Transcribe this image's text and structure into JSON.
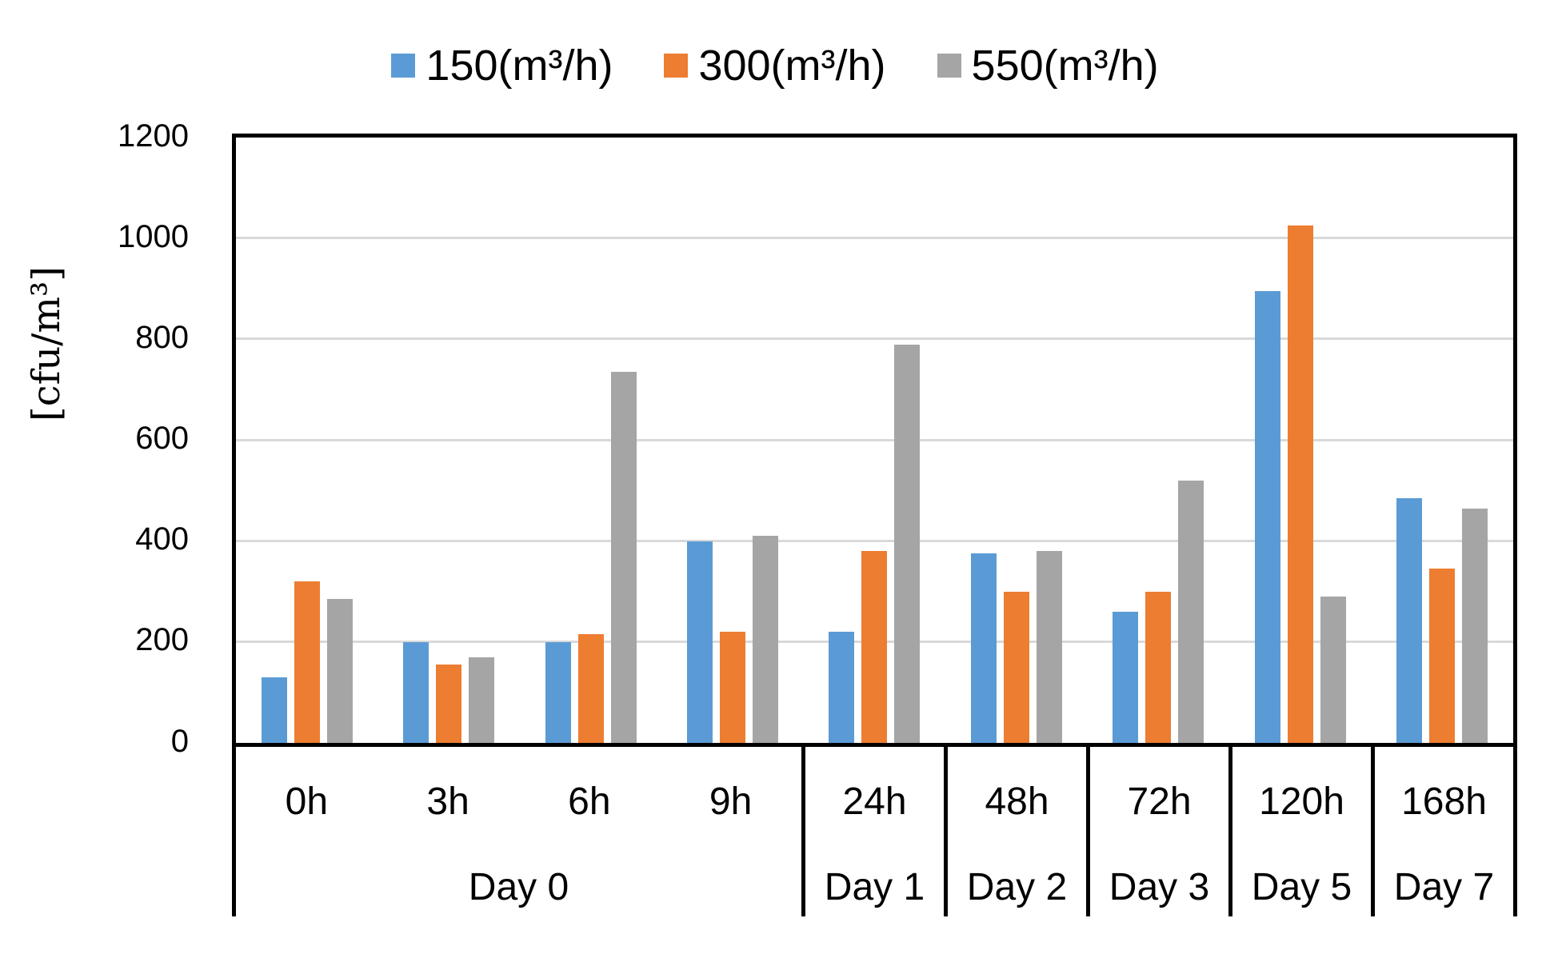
{
  "chart_data": {
    "type": "bar",
    "title": "",
    "ylabel": "[cfu/m³]",
    "ylim": [
      0,
      1200
    ],
    "yticks": [
      0,
      200,
      400,
      600,
      800,
      1000,
      1200
    ],
    "grid": true,
    "legend_position": "top-center",
    "categories": [
      "0h",
      "3h",
      "6h",
      "9h",
      "24h",
      "48h",
      "72h",
      "120h",
      "168h"
    ],
    "group_labels": [
      {
        "label": "Day 0",
        "span": 4
      },
      {
        "label": "Day 1",
        "span": 1
      },
      {
        "label": "Day 2",
        "span": 1
      },
      {
        "label": "Day 3",
        "span": 1
      },
      {
        "label": "Day 5",
        "span": 1
      },
      {
        "label": "Day 7",
        "span": 1
      }
    ],
    "series": [
      {
        "name": "150(m³/h)",
        "color": "#5B9BD5",
        "values": [
          130,
          200,
          200,
          400,
          220,
          375,
          260,
          895,
          485
        ]
      },
      {
        "name": "300(m³/h)",
        "color": "#ED7D31",
        "values": [
          320,
          155,
          215,
          220,
          380,
          300,
          300,
          1025,
          345
        ]
      },
      {
        "name": "550(m³/h)",
        "color": "#A5A5A5",
        "values": [
          285,
          170,
          735,
          410,
          790,
          380,
          520,
          290,
          465
        ]
      }
    ]
  },
  "colors": {
    "gridline": "#D9D9D9",
    "axis": "#000000",
    "text": "#000000",
    "background": "#FFFFFF"
  }
}
